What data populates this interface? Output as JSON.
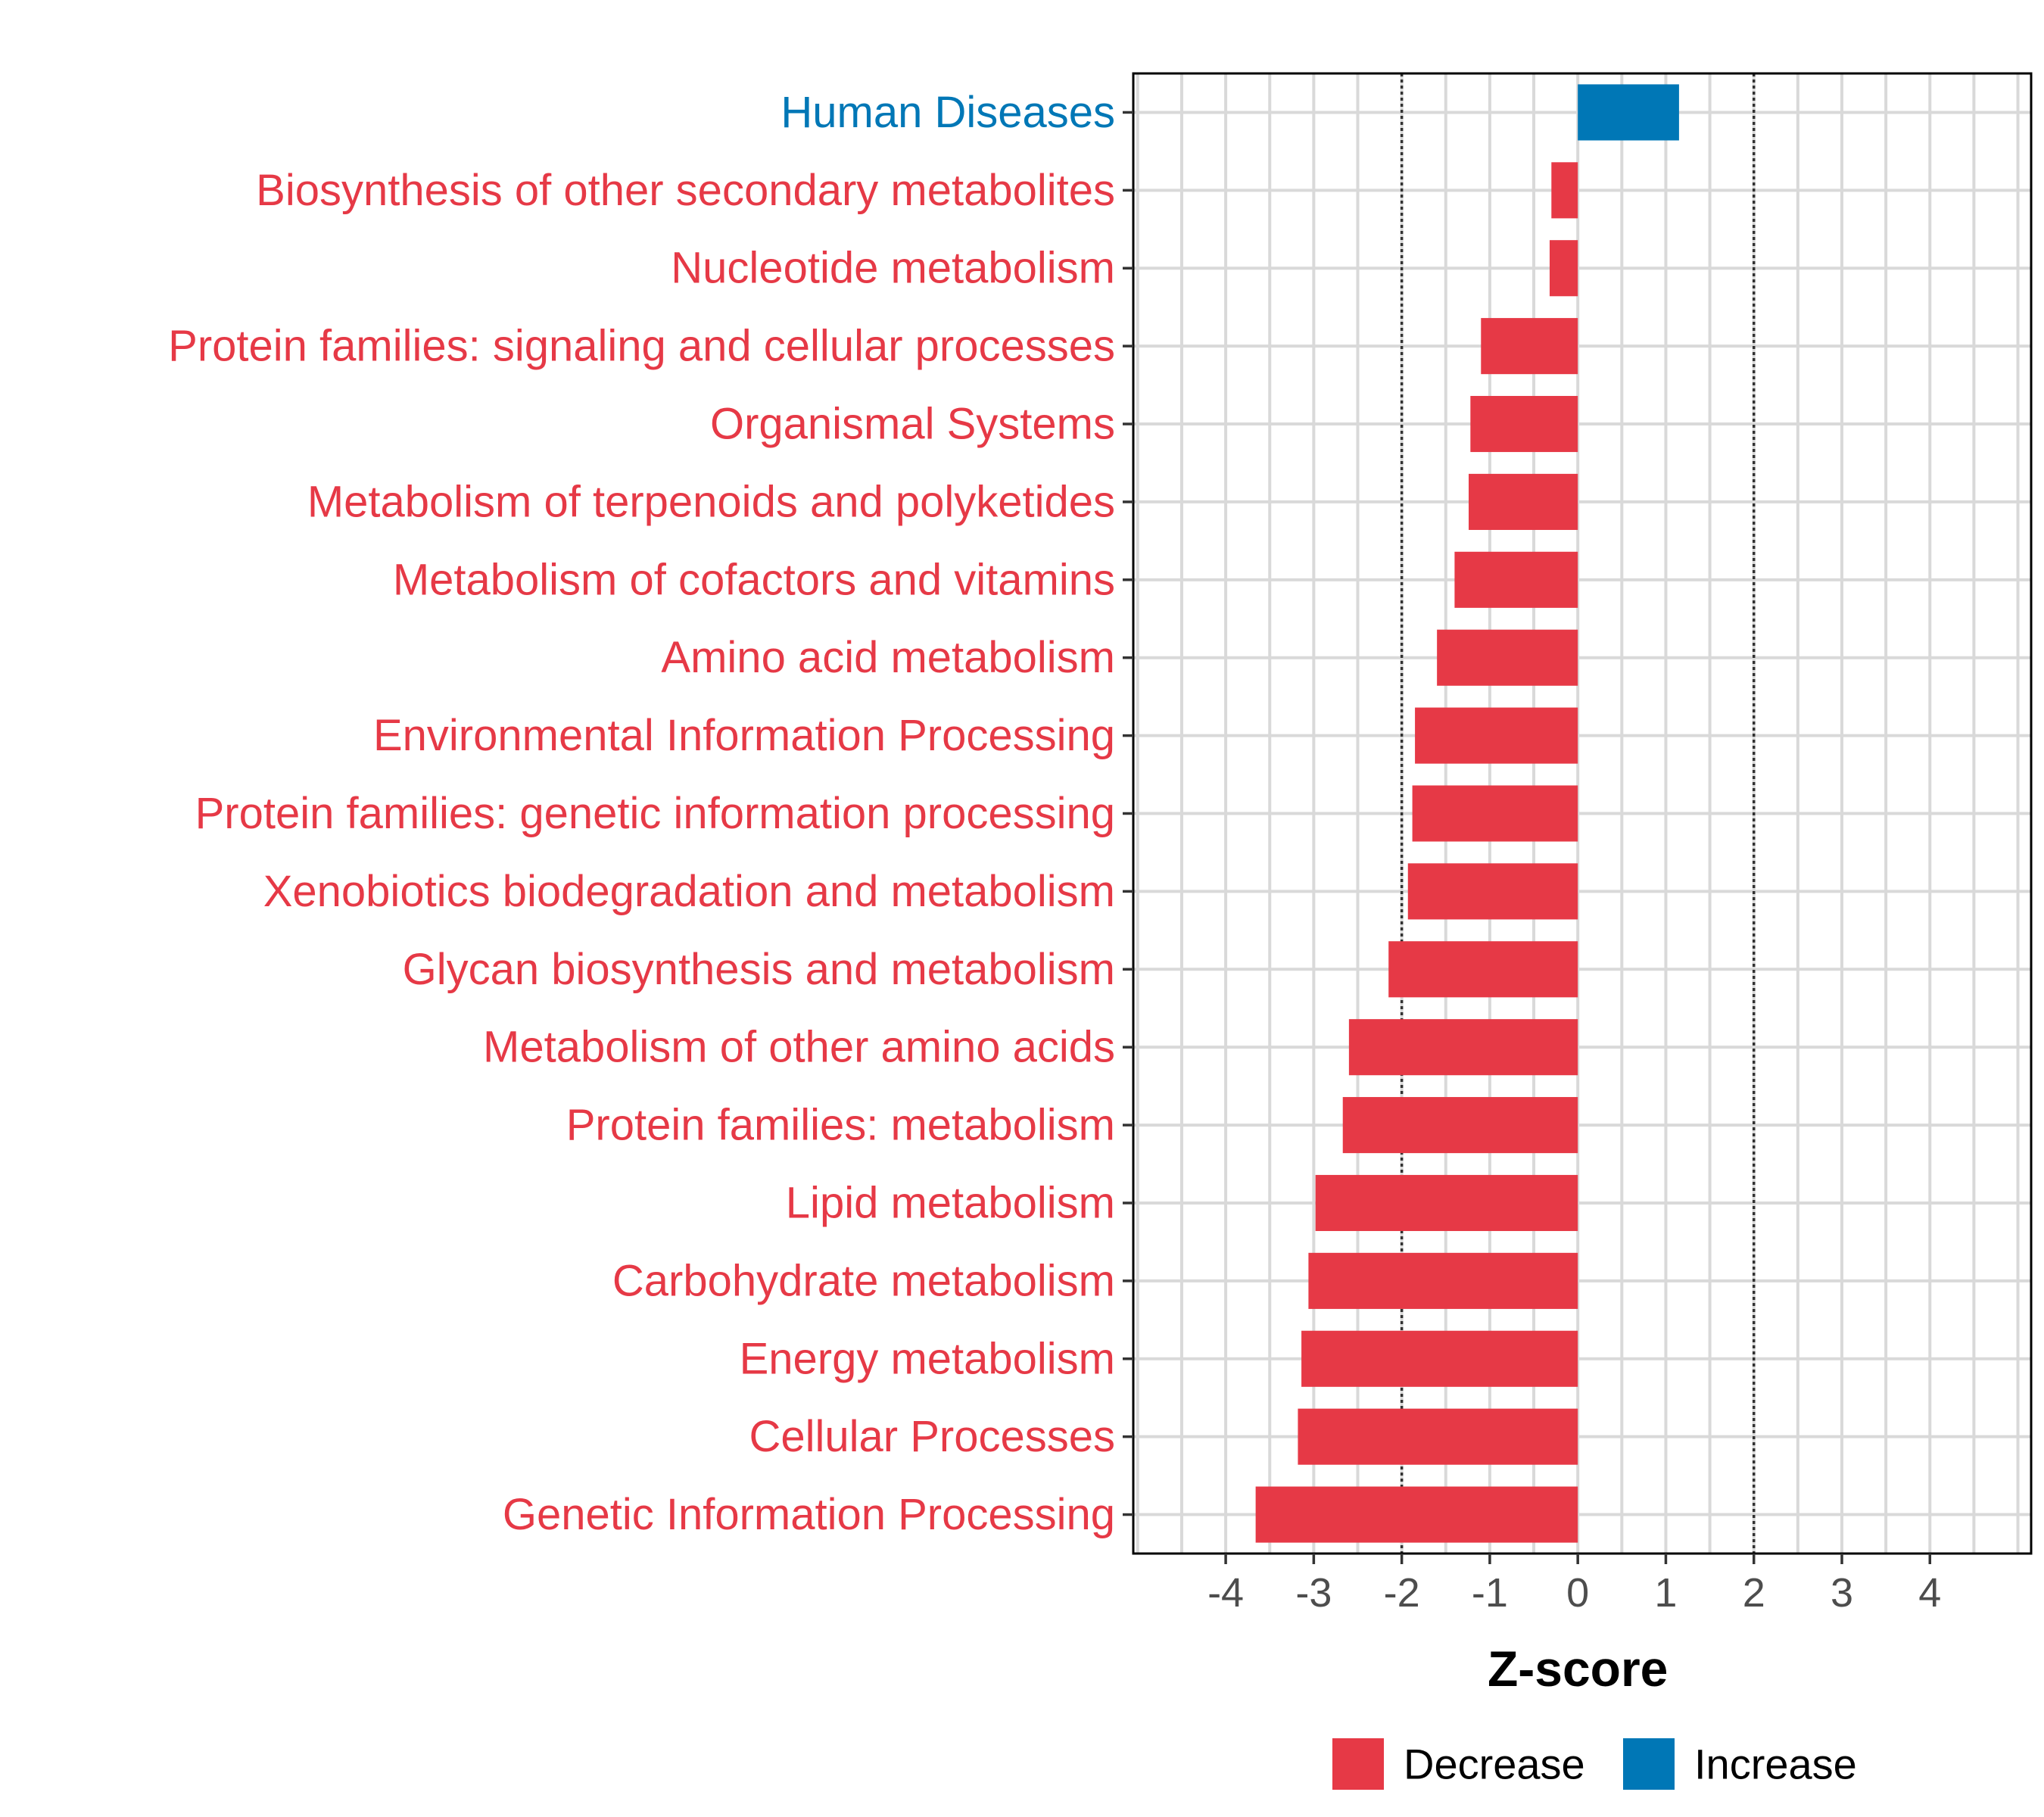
{
  "chart_data": {
    "type": "bar",
    "orientation": "horizontal",
    "title": "",
    "xlabel": "Z-score",
    "ylabel": "",
    "xlim": [
      -5.05,
      5.15
    ],
    "xticks": [
      -4,
      -3,
      -2,
      -1,
      0,
      1,
      2,
      3,
      4
    ],
    "xtick_labels": [
      "-4",
      "-3",
      "-2",
      "-1",
      "0",
      "1",
      "2",
      "3",
      "4"
    ],
    "reference_lines": [
      -2,
      2
    ],
    "grid": true,
    "legend_position": "bottom",
    "categories": [
      "Human Diseases",
      "Biosynthesis of other secondary metabolites",
      "Nucleotide metabolism",
      "Protein families: signaling and cellular processes",
      "Organismal Systems",
      "Metabolism of terpenoids and polyketides",
      "Metabolism of cofactors and vitamins",
      "Amino acid metabolism",
      "Environmental Information Processing",
      "Protein families: genetic information processing",
      "Xenobiotics biodegradation and metabolism",
      "Glycan biosynthesis and metabolism",
      "Metabolism of other amino acids",
      "Protein families: metabolism",
      "Lipid metabolism",
      "Carbohydrate metabolism",
      "Energy metabolism",
      "Cellular Processes",
      "Genetic Information Processing"
    ],
    "values": [
      1.15,
      -0.3,
      -0.32,
      -1.1,
      -1.22,
      -1.24,
      -1.4,
      -1.6,
      -1.85,
      -1.88,
      -1.93,
      -2.15,
      -2.6,
      -2.67,
      -2.98,
      -3.06,
      -3.14,
      -3.18,
      -3.66
    ],
    "groups": [
      "Increase",
      "Decrease",
      "Decrease",
      "Decrease",
      "Decrease",
      "Decrease",
      "Decrease",
      "Decrease",
      "Decrease",
      "Decrease",
      "Decrease",
      "Decrease",
      "Decrease",
      "Decrease",
      "Decrease",
      "Decrease",
      "Decrease",
      "Decrease",
      "Decrease"
    ],
    "legend": [
      {
        "label": "Decrease",
        "color": "#e63946"
      },
      {
        "label": "Increase",
        "color": "#0077b6"
      }
    ]
  }
}
